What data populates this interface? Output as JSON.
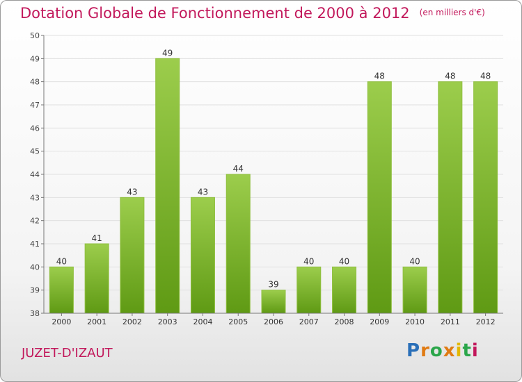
{
  "title": "Dotation Globale de Fonctionnement de 2000 à 2012",
  "unit_note": "(en milliers d'€)",
  "commune": "JUZET-D'IZAUT",
  "logo_text": "Proxiti",
  "colors": {
    "title": "#c2185b",
    "bar_top": "#9ccd4c",
    "bar_bottom": "#5f9a14",
    "grid": "#e0e0e0",
    "axis": "#777777",
    "logo_p": "#2a6fb8",
    "logo_r": "#e07b13",
    "logo_o": "#2aa64a",
    "logo_x": "#e07b13",
    "logo_i": "#e3b800",
    "logo_t": "#2aa64a",
    "logo_i2": "#c2185b"
  },
  "chart_data": {
    "type": "bar",
    "title": "Dotation Globale de Fonctionnement de 2000 à 2012",
    "xlabel": "",
    "ylabel": "",
    "categories": [
      "2000",
      "2001",
      "2002",
      "2003",
      "2004",
      "2005",
      "2006",
      "2007",
      "2008",
      "2009",
      "2010",
      "2011",
      "2012"
    ],
    "values": [
      40,
      41,
      43,
      49,
      43,
      44,
      39,
      40,
      40,
      48,
      40,
      48,
      48
    ],
    "data_labels": [
      "40",
      "41",
      "43",
      "49",
      "43",
      "44",
      "39",
      "40",
      "40",
      "48",
      "40",
      "48",
      "48"
    ],
    "ylim": [
      38,
      50
    ],
    "yticks": [
      "38",
      "39",
      "40",
      "41",
      "42",
      "43",
      "44",
      "45",
      "46",
      "47",
      "48",
      "49",
      "50"
    ],
    "grid": true,
    "legend": "none"
  }
}
